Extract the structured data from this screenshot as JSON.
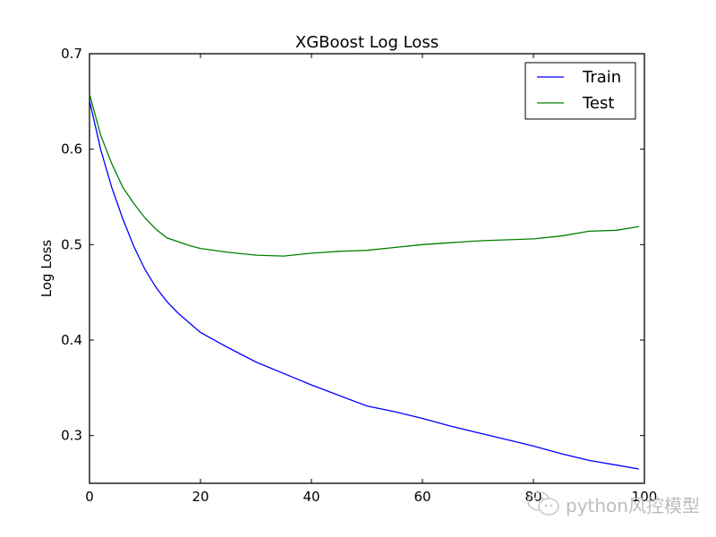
{
  "chart_data": {
    "type": "line",
    "title": "XGBoost Log Loss",
    "xlabel": "",
    "ylabel": "Log Loss",
    "xlim": [
      0,
      100
    ],
    "ylim": [
      0.25,
      0.7
    ],
    "xticks": [
      0,
      20,
      40,
      60,
      80,
      100
    ],
    "yticks": [
      0.3,
      0.4,
      0.5,
      0.6,
      0.7
    ],
    "xtick_labels": [
      "0",
      "20",
      "40",
      "60",
      "80",
      "100"
    ],
    "ytick_labels": [
      "0.3",
      "0.4",
      "0.5",
      "0.6",
      "0.7"
    ],
    "grid": false,
    "legend_position": "upper right",
    "x": [
      0,
      2,
      4,
      6,
      8,
      10,
      12,
      14,
      16,
      18,
      20,
      25,
      30,
      35,
      40,
      45,
      50,
      55,
      60,
      65,
      70,
      75,
      80,
      85,
      90,
      95,
      99
    ],
    "series": [
      {
        "name": "Train",
        "color": "#0000ff",
        "values": [
          0.651,
          0.6,
          0.56,
          0.527,
          0.498,
          0.474,
          0.455,
          0.44,
          0.428,
          0.418,
          0.408,
          0.392,
          0.377,
          0.365,
          0.353,
          0.342,
          0.331,
          0.325,
          0.318,
          0.31,
          0.303,
          0.296,
          0.289,
          0.281,
          0.274,
          0.269,
          0.265
        ]
      },
      {
        "name": "Test",
        "color": "#008000",
        "values": [
          0.658,
          0.615,
          0.585,
          0.56,
          0.543,
          0.528,
          0.516,
          0.507,
          0.503,
          0.499,
          0.496,
          0.492,
          0.489,
          0.488,
          0.491,
          0.493,
          0.494,
          0.497,
          0.5,
          0.502,
          0.504,
          0.505,
          0.506,
          0.509,
          0.514,
          0.515,
          0.519
        ]
      }
    ]
  },
  "watermark": {
    "text": "python风控模型",
    "icon": "wechat-icon"
  }
}
